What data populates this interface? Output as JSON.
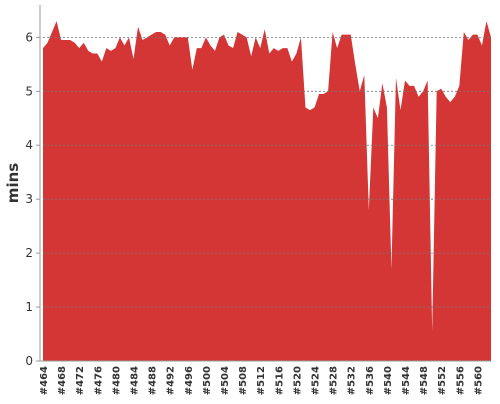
{
  "chart_data": {
    "type": "area",
    "y_label": "mins",
    "color": "#d43535",
    "categories": [
      "#464",
      null,
      null,
      null,
      "#468",
      null,
      null,
      null,
      "#472",
      null,
      null,
      null,
      "#476",
      null,
      null,
      null,
      "#480",
      null,
      null,
      null,
      "#484",
      null,
      null,
      null,
      "#488",
      null,
      null,
      null,
      "#492",
      null,
      null,
      null,
      "#496",
      null,
      null,
      null,
      "#500",
      null,
      null,
      null,
      "#504",
      null,
      null,
      null,
      "#508",
      null,
      null,
      null,
      "#512",
      null,
      null,
      null,
      "#516",
      null,
      null,
      null,
      "#520",
      null,
      null,
      null,
      "#524",
      null,
      null,
      null,
      "#528",
      null,
      null,
      null,
      "#532",
      null,
      null,
      null,
      "#536",
      null,
      null,
      null,
      "#540",
      null,
      null,
      null,
      "#544",
      null,
      null,
      null,
      "#548",
      null,
      null,
      null,
      "#552",
      null,
      null,
      null,
      "#556",
      null,
      null,
      null,
      "#560",
      null,
      null,
      null
    ],
    "values": [
      5.8,
      5.9,
      6.1,
      6.3,
      5.95,
      5.95,
      5.95,
      5.9,
      5.8,
      5.9,
      5.75,
      5.7,
      5.7,
      5.55,
      5.8,
      5.75,
      5.8,
      6.0,
      5.85,
      6.0,
      5.6,
      6.2,
      5.95,
      6.0,
      6.05,
      6.1,
      6.1,
      6.05,
      5.85,
      6.0,
      6.0,
      6.0,
      6.0,
      5.4,
      5.8,
      5.8,
      6.0,
      5.85,
      5.75,
      6.0,
      6.05,
      5.85,
      5.8,
      6.1,
      6.05,
      6.0,
      5.65,
      6.0,
      5.8,
      6.15,
      5.7,
      5.8,
      5.75,
      5.8,
      5.8,
      5.55,
      5.7,
      6.0,
      4.7,
      4.65,
      4.7,
      4.95,
      4.95,
      5.0,
      6.1,
      5.8,
      6.05,
      6.05,
      6.05,
      5.5,
      5.0,
      5.3,
      2.8,
      4.7,
      4.5,
      5.15,
      4.7,
      1.7,
      5.25,
      4.65,
      5.2,
      5.1,
      5.1,
      4.9,
      5.0,
      5.2,
      0.55,
      5.0,
      5.05,
      4.9,
      4.8,
      4.9,
      5.1,
      6.1,
      5.95,
      6.05,
      6.05,
      5.85,
      6.3,
      6.0
    ],
    "ylim": [
      0,
      6.6
    ],
    "yticks": [
      0,
      1,
      2,
      3,
      4,
      5,
      6
    ],
    "grid": true
  }
}
